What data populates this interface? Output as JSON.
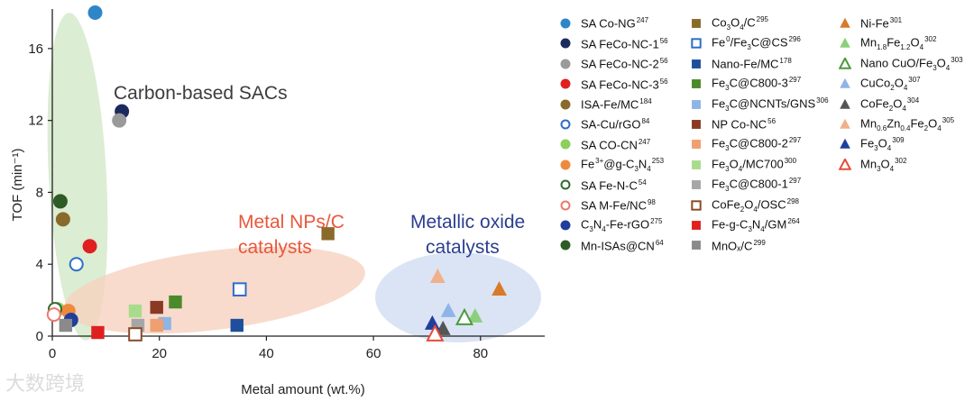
{
  "chart_data": {
    "type": "scatter",
    "title": "",
    "xlabel": "Metal amount (wt.%)",
    "ylabel": "TOF (min⁻¹)",
    "xlim": [
      0,
      92
    ],
    "ylim": [
      0,
      18.2
    ],
    "xticks": [
      0,
      20,
      40,
      60,
      80
    ],
    "yticks": [
      0,
      4,
      8,
      12,
      16
    ],
    "groups": [
      {
        "name": "Carbon-based SACs",
        "color": "#3c3c3c",
        "fill": "#cfe7c4"
      },
      {
        "name": "Metal NPs/C catalysts",
        "color": "#e8583c",
        "fill": "#f6d2bf"
      },
      {
        "name": "Metallic oxide catalysts",
        "color": "#2b3f8f",
        "fill": "#d5dff2"
      }
    ],
    "series": [
      {
        "name": "SA Co-NG",
        "ref": "247",
        "marker": "circle",
        "color": "#2e86c8",
        "filled": true,
        "points": [
          [
            8,
            18
          ]
        ]
      },
      {
        "name": "SA FeCo-NC-1",
        "ref": "56",
        "marker": "circle",
        "color": "#1b2a5e",
        "filled": true,
        "points": [
          [
            13,
            12.5
          ]
        ]
      },
      {
        "name": "SA FeCo-NC-2",
        "ref": "56",
        "marker": "circle",
        "color": "#9a9a9a",
        "filled": true,
        "points": [
          [
            12.5,
            12
          ]
        ]
      },
      {
        "name": "SA FeCo-NC-3",
        "ref": "56",
        "marker": "circle",
        "color": "#e02020",
        "filled": true,
        "points": [
          [
            7,
            5
          ]
        ]
      },
      {
        "name": "ISA-Fe/MC",
        "ref": "184",
        "marker": "circle",
        "color": "#8a6a2a",
        "filled": true,
        "points": [
          [
            2,
            6.5
          ]
        ]
      },
      {
        "name": "SA-Cu/rGO",
        "ref": "84",
        "marker": "circle",
        "color": "#2e6dc8",
        "filled": false,
        "points": [
          [
            4.5,
            4
          ]
        ]
      },
      {
        "name": "SA CO-CN",
        "ref": "247",
        "marker": "circle",
        "color": "#8ccf5a",
        "filled": true,
        "points": [
          [
            1,
            1.5
          ]
        ]
      },
      {
        "name": "Fe³⁺@g-C₃N₄",
        "ref": "253",
        "marker": "circle",
        "color": "#ee8a3c",
        "filled": true,
        "points": [
          [
            3,
            1.4
          ]
        ]
      },
      {
        "name": "SA Fe-N-C",
        "ref": "54",
        "marker": "circle",
        "color": "#2f6b2f",
        "filled": false,
        "points": [
          [
            0.5,
            1.5
          ]
        ]
      },
      {
        "name": "SA M-Fe/NC",
        "ref": "98",
        "marker": "circle",
        "color": "#ee7a6a",
        "filled": false,
        "points": [
          [
            0.3,
            1.2
          ]
        ]
      },
      {
        "name": "C₃N₄-Fe-rGO",
        "ref": "275",
        "marker": "circle",
        "color": "#1f3f9c",
        "filled": true,
        "points": [
          [
            3.5,
            0.9
          ]
        ]
      },
      {
        "name": "Mn-ISAs@CN",
        "ref": "64",
        "marker": "circle",
        "color": "#2e5c26",
        "filled": true,
        "points": [
          [
            1.5,
            7.5
          ]
        ]
      },
      {
        "name": "Co₃O₄/C",
        "ref": "295",
        "marker": "square",
        "color": "#8a6a2a",
        "filled": true,
        "points": [
          [
            51.5,
            5.7
          ]
        ]
      },
      {
        "name": "Fe⁰/Fe₃C@CS",
        "ref": "296",
        "marker": "square",
        "color": "#2e6dc8",
        "filled": false,
        "points": [
          [
            35,
            2.6
          ]
        ]
      },
      {
        "name": "Nano-Fe/MC",
        "ref": "178",
        "marker": "square",
        "color": "#1f4f9c",
        "filled": true,
        "points": [
          [
            34.5,
            0.6
          ]
        ]
      },
      {
        "name": "Fe₃C@C800-3",
        "ref": "297",
        "marker": "square",
        "color": "#4a8a2a",
        "filled": true,
        "points": [
          [
            23,
            1.9
          ]
        ]
      },
      {
        "name": "Fe₃C@NCNTs/GNS",
        "ref": "306",
        "marker": "square",
        "color": "#8fb4e6",
        "filled": true,
        "points": [
          [
            21,
            0.7
          ]
        ]
      },
      {
        "name": "NP Co-NC",
        "ref": "56",
        "marker": "square",
        "color": "#8a3a22",
        "filled": true,
        "points": [
          [
            19.5,
            1.6
          ]
        ]
      },
      {
        "name": "Fe₃C@C800-2",
        "ref": "297",
        "marker": "square",
        "color": "#f0a070",
        "filled": true,
        "points": [
          [
            19.5,
            0.6
          ]
        ]
      },
      {
        "name": "Fe₃O₄/MC700",
        "ref": "300",
        "marker": "square",
        "color": "#a8dc8c",
        "filled": true,
        "points": [
          [
            15.5,
            1.4
          ]
        ]
      },
      {
        "name": "Fe₃C@C800-1",
        "ref": "297",
        "marker": "square",
        "color": "#a6a6a6",
        "filled": true,
        "points": [
          [
            16,
            0.6
          ]
        ]
      },
      {
        "name": "CoFe₂O₄/OSC",
        "ref": "298",
        "marker": "square",
        "color": "#8a4a2a",
        "filled": false,
        "points": [
          [
            15.5,
            0.1
          ]
        ]
      },
      {
        "name": "Fe-g-C₃N₄/GM",
        "ref": "264",
        "marker": "square",
        "color": "#e02020",
        "filled": true,
        "points": [
          [
            8.5,
            0.2
          ]
        ]
      },
      {
        "name": "MnOₓ/C",
        "ref": "299",
        "marker": "square",
        "color": "#8a8a8a",
        "filled": true,
        "points": [
          [
            2.5,
            0.6
          ]
        ]
      },
      {
        "name": "Ni-Fe",
        "ref": "301",
        "marker": "triangle",
        "color": "#d87a2a",
        "filled": true,
        "points": [
          [
            83.5,
            2.6
          ]
        ]
      },
      {
        "name": "Mn₁.₈Fe₁.₂O₄",
        "ref": "302",
        "marker": "triangle",
        "color": "#8ccf7a",
        "filled": true,
        "points": [
          [
            79,
            1.1
          ]
        ]
      },
      {
        "name": "Nano CuO/Fe₃O₄",
        "ref": "303",
        "marker": "triangle",
        "color": "#4a9a3a",
        "filled": false,
        "points": [
          [
            77,
            1.0
          ]
        ]
      },
      {
        "name": "CuCo₂O₄",
        "ref": "307",
        "marker": "triangle",
        "color": "#8fb4e6",
        "filled": true,
        "points": [
          [
            74,
            1.4
          ]
        ]
      },
      {
        "name": "CoFe₂O₄",
        "ref": "304",
        "marker": "triangle",
        "color": "#555555",
        "filled": true,
        "points": [
          [
            73,
            0.4
          ]
        ]
      },
      {
        "name": "Mn₀.₆Zn₀.₄Fe₂O₄",
        "ref": "305",
        "marker": "triangle",
        "color": "#f0b08a",
        "filled": true,
        "points": [
          [
            72,
            3.3
          ]
        ]
      },
      {
        "name": "Fe₃O₄",
        "ref": "309",
        "marker": "triangle",
        "color": "#1f3f9c",
        "filled": true,
        "points": [
          [
            71,
            0.7
          ]
        ]
      },
      {
        "name": "Mn₃O₄",
        "ref": "302",
        "marker": "triangle",
        "color": "#e84a3a",
        "filled": false,
        "points": [
          [
            71.5,
            0.1
          ]
        ]
      }
    ]
  },
  "watermark": "大数跨境"
}
